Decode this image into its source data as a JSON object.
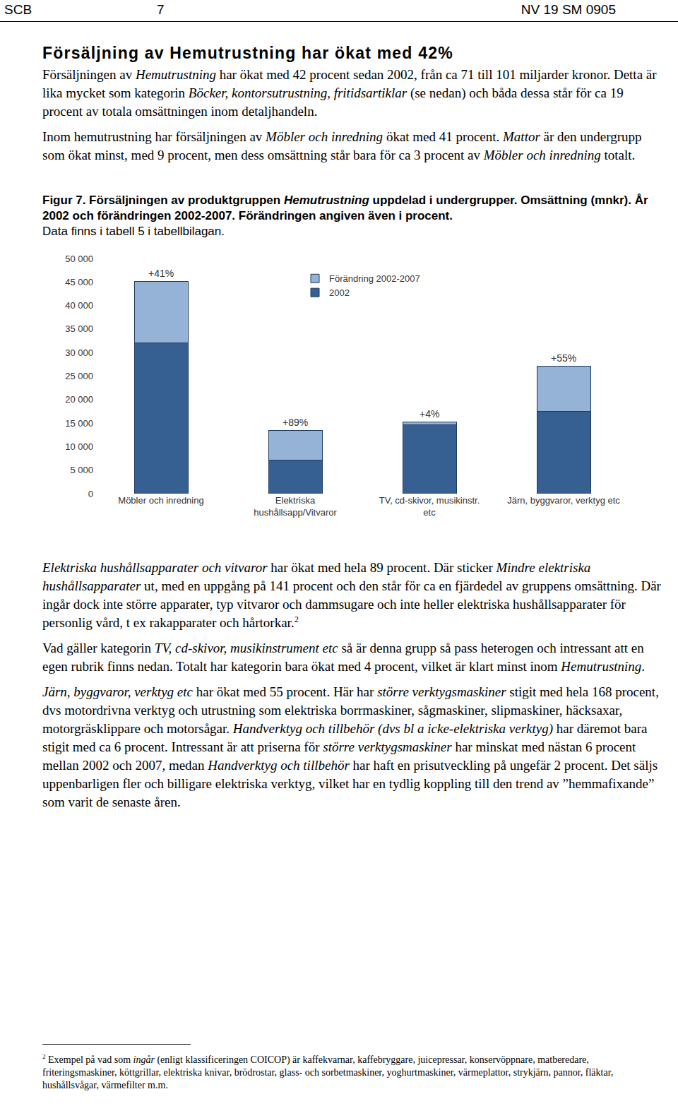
{
  "header": {
    "left": "SCB",
    "center": "7",
    "right": "NV 19 SM 0905"
  },
  "heading": "Försäljning av Hemutrustning har ökat med 42%",
  "paragraphs_before": [
    [
      "Försäljningen av ",
      {
        "text": "Hemutrustning",
        "style": "italic"
      },
      " har ökat med 42 procent sedan 2002, från ca 71 till 101 miljarder kronor. Detta är lika mycket som kategorin ",
      {
        "text": "Böcker, kontorsutrustning, fritidsartiklar",
        "style": "italic"
      },
      " (se nedan) och båda dessa står för ca 19 procent av totala omsättningen inom detaljhandeln."
    ],
    [
      "Inom hemutrustning har försäljningen av ",
      {
        "text": "Möbler och inredning",
        "style": "italic"
      },
      " ökat med 41 procent. ",
      {
        "text": "Mattor",
        "style": "italic"
      },
      " är den undergrupp som ökat minst, med 9 procent, men dess omsättning står bara för ca 3 procent av ",
      {
        "text": "Möbler och inredning",
        "style": "italic"
      },
      " totalt."
    ]
  ],
  "caption": [
    [
      {
        "text": "Figur 7. Försäljningen av produktgruppen ",
        "style": "bold"
      },
      {
        "text": "Hemutrustning",
        "style": "bold-italic"
      },
      {
        "text": " uppdelad i undergrupper. Omsättning (mnkr). År 2002 och förändringen 2002-2007. Förändringen angiven även i procent.",
        "style": "bold"
      }
    ],
    [
      "Data finns i tabell 5 i tabellbilagan."
    ]
  ],
  "chart_data": {
    "type": "bar",
    "stacked": true,
    "legend": "top",
    "grid": false,
    "categories": [
      "Möbler och inredning",
      "Elektriska\nhushållsapp/Vitvaror",
      "TV, cd-skivor, musikinstr.\netc",
      "Järn, byggvaror, verktyg etc"
    ],
    "series": [
      {
        "name": "2002",
        "color": "#376092",
        "values": [
          32000,
          7100,
          14600,
          17500
        ]
      },
      {
        "name": "Förändring 2002-2007",
        "color": "#95b3d7",
        "values": [
          13100,
          6300,
          600,
          9600
        ]
      }
    ],
    "annotations": [
      {
        "category": "Möbler och inredning",
        "text": "+41%"
      },
      {
        "category": "Elektriska\nhushållsapp/Vitvaror",
        "text": "+89%"
      },
      {
        "category": "TV, cd-skivor, musikinstr.\netc",
        "text": "+4%"
      },
      {
        "category": "Järn, byggvaror, verktyg etc",
        "text": "+55%"
      }
    ],
    "ylim": [
      0,
      50000
    ],
    "yticks": [
      0,
      {
        "value": 5000,
        "label": "5 000"
      },
      {
        "value": 10000,
        "label": "10 000"
      },
      {
        "value": 15000,
        "label": "15 000"
      },
      {
        "value": 20000,
        "label": "20 000"
      },
      {
        "value": 25000,
        "label": "25 000"
      },
      {
        "value": 30000,
        "label": "30 000"
      },
      {
        "value": 35000,
        "label": "35 000"
      },
      {
        "value": 40000,
        "label": "40 000"
      },
      {
        "value": 45000,
        "label": "45 000"
      },
      {
        "value": 50000,
        "label": "50 000"
      }
    ]
  },
  "paragraphs_after": [
    [
      {
        "text": "Elektriska hushållsapparater och vitvaror",
        "style": "italic"
      },
      " har ökat med hela 89 procent. Där sticker ",
      {
        "text": "Mindre elektriska hushållsapparater",
        "style": "italic"
      },
      " ut, med en uppgång på 141 procent och den står för ca en fjärdedel av gruppens omsättning. Där ingår dock inte större apparater, typ vitvaror och dammsugare och inte heller elektriska hushållsapparater för personlig vård, t ex rakapparater och hårtorkar.",
      {
        "text": "2",
        "style": "sup"
      }
    ],
    [
      "Vad gäller kategorin ",
      {
        "text": "TV, cd-skivor, musikinstrument etc",
        "style": "italic"
      },
      " så är denna grupp så pass heterogen och intressant att en egen rubrik finns nedan. Totalt har kategorin bara ökat med 4 procent, vilket är klart minst inom ",
      {
        "text": "Hemutrustning",
        "style": "italic"
      },
      "."
    ],
    [
      {
        "text": "Järn, byggvaror, verktyg etc",
        "style": "italic"
      },
      " har ökat med 55 procent. Här har ",
      {
        "text": "större verktygsmaskiner",
        "style": "italic"
      },
      " stigit med hela 168 procent, dvs motordrivna verktyg och utrustning som elektriska borrmaskiner, sågmaskiner, slipmaskiner, häcksaxar, motorgräsklippare och motorsågar. ",
      {
        "text": "Handverktyg och tillbehör (dvs bl a icke-elektriska verktyg)",
        "style": "italic"
      },
      " har däremot bara stigit med ca 6 procent. Intressant är att priserna för ",
      {
        "text": "större verktygsmaskiner",
        "style": "italic"
      },
      " har minskat med nästan 6 procent mellan 2002 och 2007, medan ",
      {
        "text": "Handverktyg och tillbehör",
        "style": "italic"
      },
      " har haft en prisutveckling på ungefär 2 procent. Det säljs uppenbarligen fler och billigare elektriska verktyg, vilket har en tydlig koppling till den trend av ”hemmafixande” som varit de senaste åren."
    ]
  ],
  "footnote": [
    {
      "text": "2",
      "style": "sup"
    },
    " Exempel på vad som ",
    {
      "text": "ingår",
      "style": "italic"
    },
    " (enligt klassificeringen COICOP) är kaffekvarnar, kaffebryggare, juicepressar, konservöppnare, matberedare, friteringsmaskiner, köttgrillar, elektriska knivar, brödrostar, glass- och sorbetmaskiner, yoghurtmaskiner, värmeplattor, strykjärn, pannor, fläktar, hushållsvågar, värmefilter m.m."
  ]
}
